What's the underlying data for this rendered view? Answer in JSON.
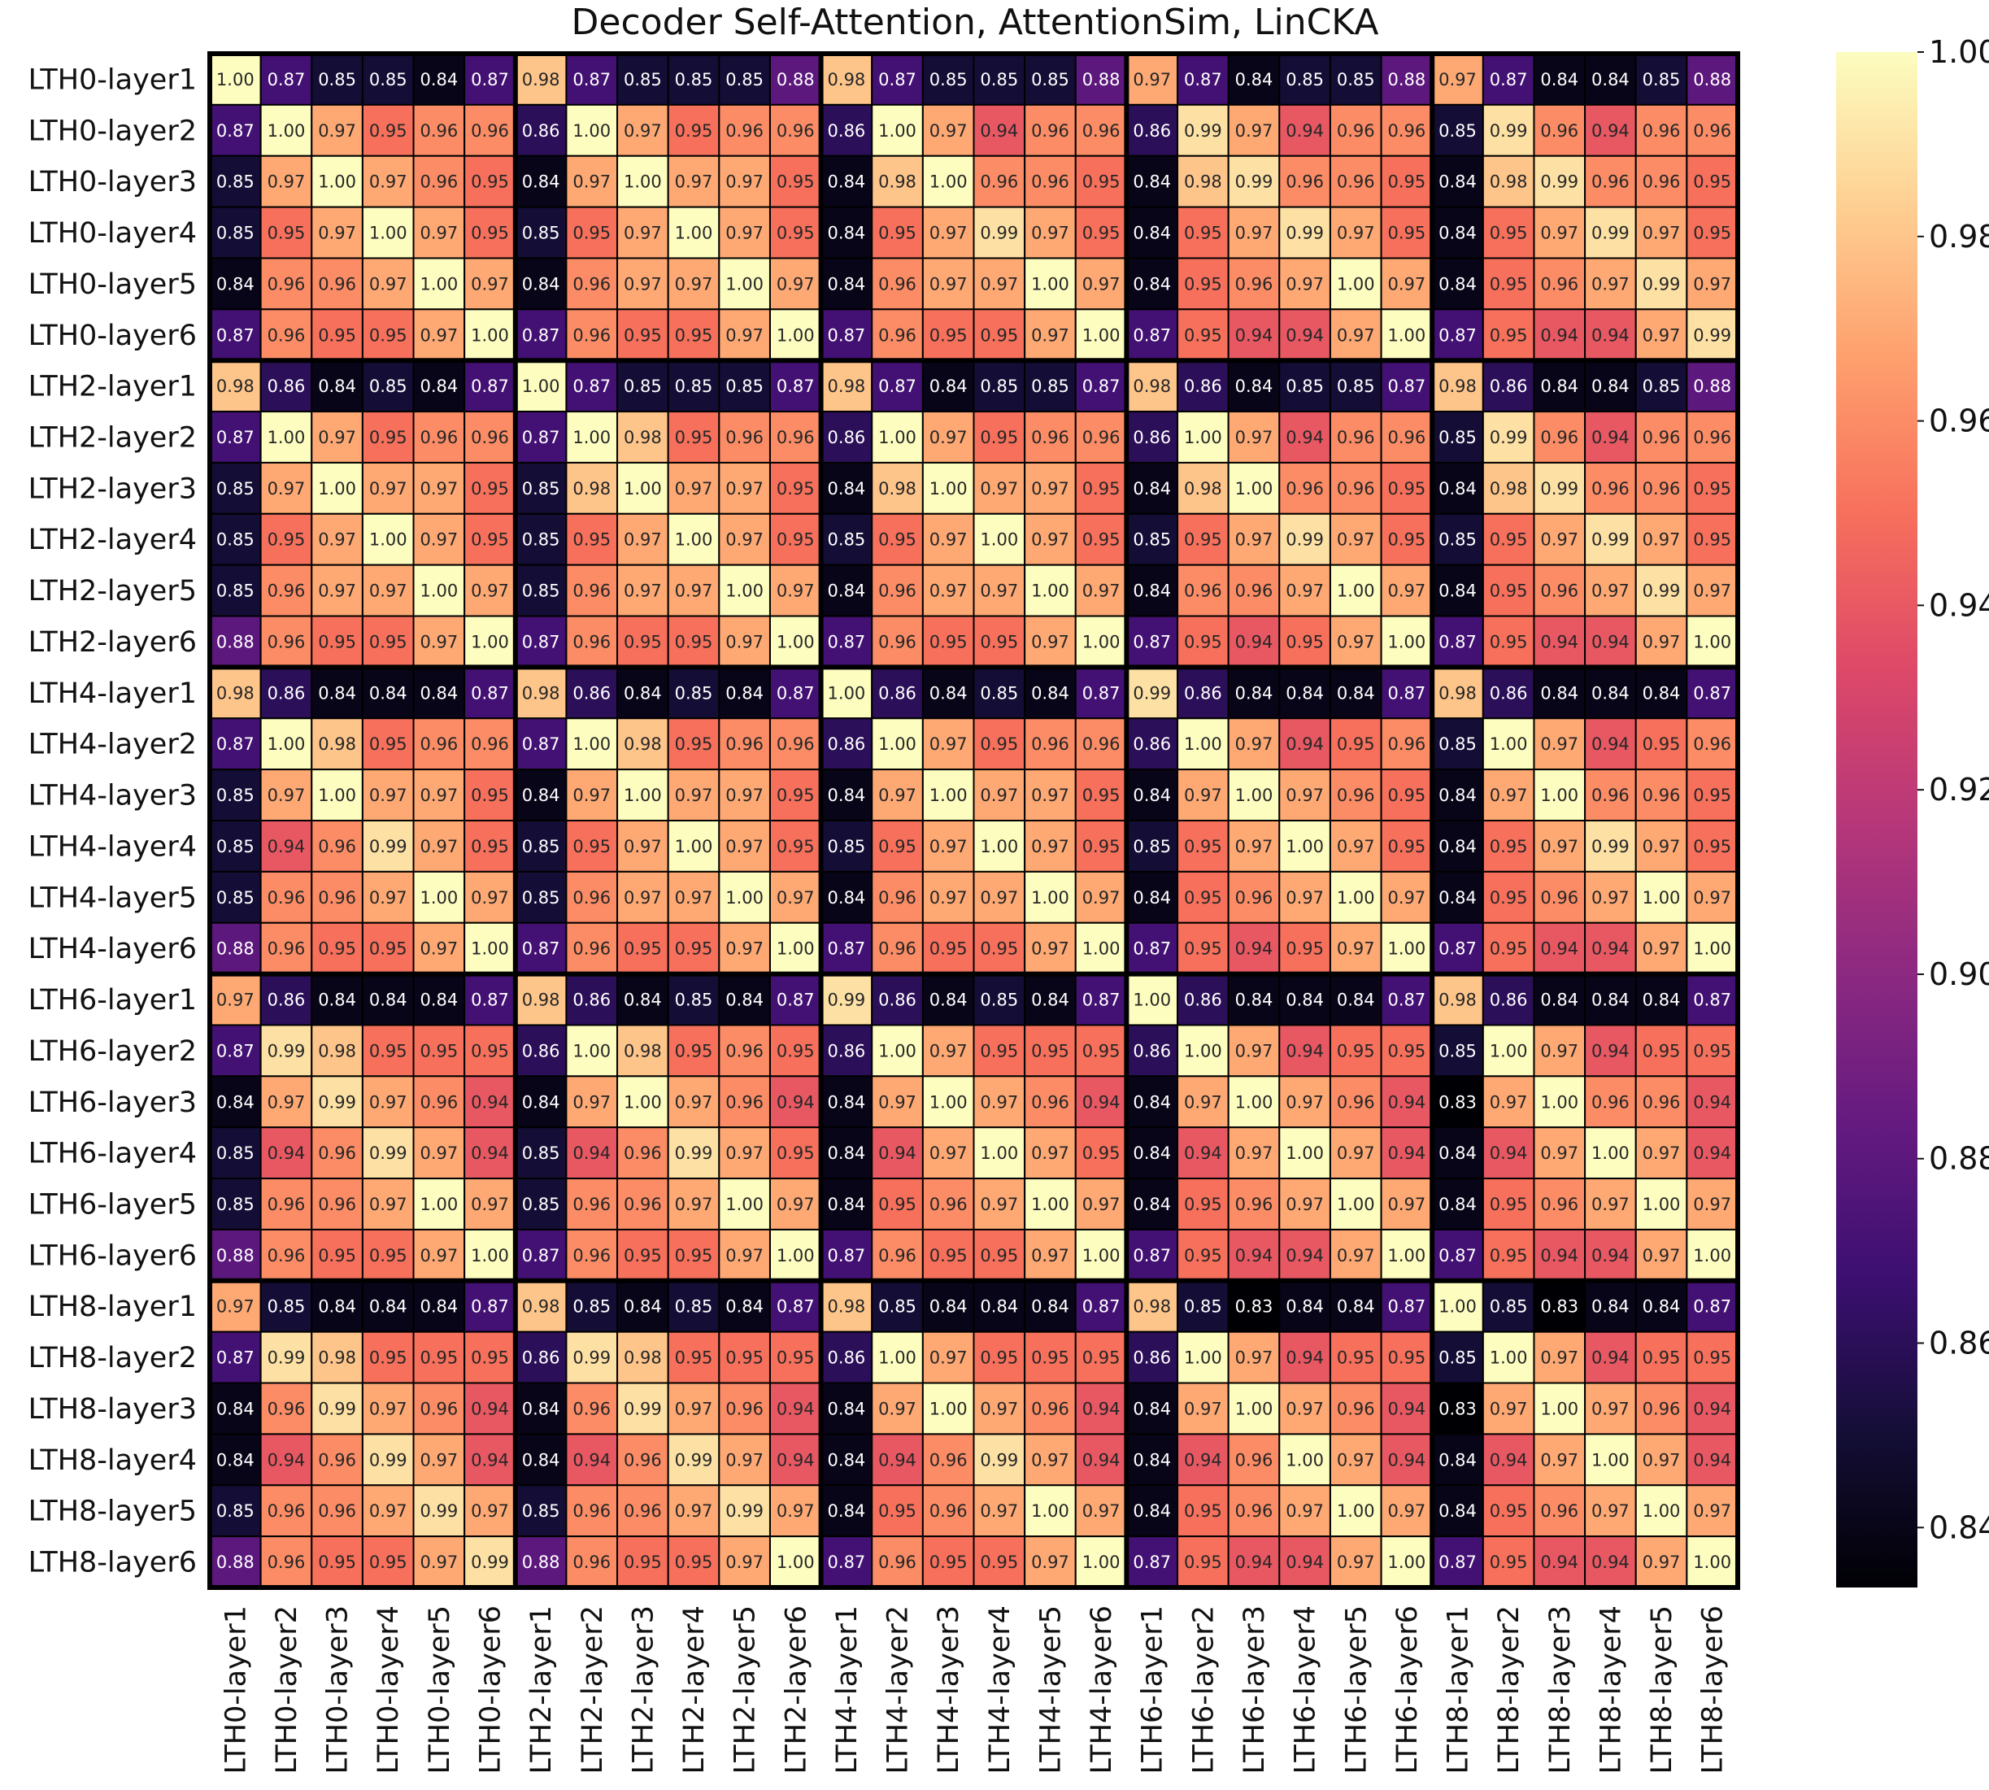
{
  "chart_data": {
    "type": "heatmap",
    "title": "Decoder Self-Attention, AttentionSim, LinCKA",
    "colormap": "magma",
    "vmin": 0.8335,
    "vmax": 1.0,
    "colorbar_ticks": [
      "0.84",
      "0.86",
      "0.88",
      "0.90",
      "0.92",
      "0.94",
      "0.96",
      "0.98",
      "1.00"
    ],
    "labels": [
      "LTH0-layer1",
      "LTH0-layer2",
      "LTH0-layer3",
      "LTH0-layer4",
      "LTH0-layer5",
      "LTH0-layer6",
      "LTH2-layer1",
      "LTH2-layer2",
      "LTH2-layer3",
      "LTH2-layer4",
      "LTH2-layer5",
      "LTH2-layer6",
      "LTH4-layer1",
      "LTH4-layer2",
      "LTH4-layer3",
      "LTH4-layer4",
      "LTH4-layer5",
      "LTH4-layer6",
      "LTH6-layer1",
      "LTH6-layer2",
      "LTH6-layer3",
      "LTH6-layer4",
      "LTH6-layer5",
      "LTH6-layer6",
      "LTH8-layer1",
      "LTH8-layer2",
      "LTH8-layer3",
      "LTH8-layer4",
      "LTH8-layer5",
      "LTH8-layer6"
    ],
    "values": [
      [
        "1.00",
        "0.87",
        "0.85",
        "0.85",
        "0.84",
        "0.87",
        "0.98",
        "0.87",
        "0.85",
        "0.85",
        "0.85",
        "0.88",
        "0.98",
        "0.87",
        "0.85",
        "0.85",
        "0.85",
        "0.88",
        "0.97",
        "0.87",
        "0.84",
        "0.85",
        "0.85",
        "0.88",
        "0.97",
        "0.87",
        "0.84",
        "0.84",
        "0.85",
        "0.88"
      ],
      [
        "0.87",
        "1.00",
        "0.97",
        "0.95",
        "0.96",
        "0.96",
        "0.86",
        "1.00",
        "0.97",
        "0.95",
        "0.96",
        "0.96",
        "0.86",
        "1.00",
        "0.97",
        "0.94",
        "0.96",
        "0.96",
        "0.86",
        "0.99",
        "0.97",
        "0.94",
        "0.96",
        "0.96",
        "0.85",
        "0.99",
        "0.96",
        "0.94",
        "0.96",
        "0.96"
      ],
      [
        "0.85",
        "0.97",
        "1.00",
        "0.97",
        "0.96",
        "0.95",
        "0.84",
        "0.97",
        "1.00",
        "0.97",
        "0.97",
        "0.95",
        "0.84",
        "0.98",
        "1.00",
        "0.96",
        "0.96",
        "0.95",
        "0.84",
        "0.98",
        "0.99",
        "0.96",
        "0.96",
        "0.95",
        "0.84",
        "0.98",
        "0.99",
        "0.96",
        "0.96",
        "0.95"
      ],
      [
        "0.85",
        "0.95",
        "0.97",
        "1.00",
        "0.97",
        "0.95",
        "0.85",
        "0.95",
        "0.97",
        "1.00",
        "0.97",
        "0.95",
        "0.84",
        "0.95",
        "0.97",
        "0.99",
        "0.97",
        "0.95",
        "0.84",
        "0.95",
        "0.97",
        "0.99",
        "0.97",
        "0.95",
        "0.84",
        "0.95",
        "0.97",
        "0.99",
        "0.97",
        "0.95"
      ],
      [
        "0.84",
        "0.96",
        "0.96",
        "0.97",
        "1.00",
        "0.97",
        "0.84",
        "0.96",
        "0.97",
        "0.97",
        "1.00",
        "0.97",
        "0.84",
        "0.96",
        "0.97",
        "0.97",
        "1.00",
        "0.97",
        "0.84",
        "0.95",
        "0.96",
        "0.97",
        "1.00",
        "0.97",
        "0.84",
        "0.95",
        "0.96",
        "0.97",
        "0.99",
        "0.97"
      ],
      [
        "0.87",
        "0.96",
        "0.95",
        "0.95",
        "0.97",
        "1.00",
        "0.87",
        "0.96",
        "0.95",
        "0.95",
        "0.97",
        "1.00",
        "0.87",
        "0.96",
        "0.95",
        "0.95",
        "0.97",
        "1.00",
        "0.87",
        "0.95",
        "0.94",
        "0.94",
        "0.97",
        "1.00",
        "0.87",
        "0.95",
        "0.94",
        "0.94",
        "0.97",
        "0.99"
      ],
      [
        "0.98",
        "0.86",
        "0.84",
        "0.85",
        "0.84",
        "0.87",
        "1.00",
        "0.87",
        "0.85",
        "0.85",
        "0.85",
        "0.87",
        "0.98",
        "0.87",
        "0.84",
        "0.85",
        "0.85",
        "0.87",
        "0.98",
        "0.86",
        "0.84",
        "0.85",
        "0.85",
        "0.87",
        "0.98",
        "0.86",
        "0.84",
        "0.84",
        "0.85",
        "0.88"
      ],
      [
        "0.87",
        "1.00",
        "0.97",
        "0.95",
        "0.96",
        "0.96",
        "0.87",
        "1.00",
        "0.98",
        "0.95",
        "0.96",
        "0.96",
        "0.86",
        "1.00",
        "0.97",
        "0.95",
        "0.96",
        "0.96",
        "0.86",
        "1.00",
        "0.97",
        "0.94",
        "0.96",
        "0.96",
        "0.85",
        "0.99",
        "0.96",
        "0.94",
        "0.96",
        "0.96"
      ],
      [
        "0.85",
        "0.97",
        "1.00",
        "0.97",
        "0.97",
        "0.95",
        "0.85",
        "0.98",
        "1.00",
        "0.97",
        "0.97",
        "0.95",
        "0.84",
        "0.98",
        "1.00",
        "0.97",
        "0.97",
        "0.95",
        "0.84",
        "0.98",
        "1.00",
        "0.96",
        "0.96",
        "0.95",
        "0.84",
        "0.98",
        "0.99",
        "0.96",
        "0.96",
        "0.95"
      ],
      [
        "0.85",
        "0.95",
        "0.97",
        "1.00",
        "0.97",
        "0.95",
        "0.85",
        "0.95",
        "0.97",
        "1.00",
        "0.97",
        "0.95",
        "0.85",
        "0.95",
        "0.97",
        "1.00",
        "0.97",
        "0.95",
        "0.85",
        "0.95",
        "0.97",
        "0.99",
        "0.97",
        "0.95",
        "0.85",
        "0.95",
        "0.97",
        "0.99",
        "0.97",
        "0.95"
      ],
      [
        "0.85",
        "0.96",
        "0.97",
        "0.97",
        "1.00",
        "0.97",
        "0.85",
        "0.96",
        "0.97",
        "0.97",
        "1.00",
        "0.97",
        "0.84",
        "0.96",
        "0.97",
        "0.97",
        "1.00",
        "0.97",
        "0.84",
        "0.96",
        "0.96",
        "0.97",
        "1.00",
        "0.97",
        "0.84",
        "0.95",
        "0.96",
        "0.97",
        "0.99",
        "0.97"
      ],
      [
        "0.88",
        "0.96",
        "0.95",
        "0.95",
        "0.97",
        "1.00",
        "0.87",
        "0.96",
        "0.95",
        "0.95",
        "0.97",
        "1.00",
        "0.87",
        "0.96",
        "0.95",
        "0.95",
        "0.97",
        "1.00",
        "0.87",
        "0.95",
        "0.94",
        "0.95",
        "0.97",
        "1.00",
        "0.87",
        "0.95",
        "0.94",
        "0.94",
        "0.97",
        "1.00"
      ],
      [
        "0.98",
        "0.86",
        "0.84",
        "0.84",
        "0.84",
        "0.87",
        "0.98",
        "0.86",
        "0.84",
        "0.85",
        "0.84",
        "0.87",
        "1.00",
        "0.86",
        "0.84",
        "0.85",
        "0.84",
        "0.87",
        "0.99",
        "0.86",
        "0.84",
        "0.84",
        "0.84",
        "0.87",
        "0.98",
        "0.86",
        "0.84",
        "0.84",
        "0.84",
        "0.87"
      ],
      [
        "0.87",
        "1.00",
        "0.98",
        "0.95",
        "0.96",
        "0.96",
        "0.87",
        "1.00",
        "0.98",
        "0.95",
        "0.96",
        "0.96",
        "0.86",
        "1.00",
        "0.97",
        "0.95",
        "0.96",
        "0.96",
        "0.86",
        "1.00",
        "0.97",
        "0.94",
        "0.95",
        "0.96",
        "0.85",
        "1.00",
        "0.97",
        "0.94",
        "0.95",
        "0.96"
      ],
      [
        "0.85",
        "0.97",
        "1.00",
        "0.97",
        "0.97",
        "0.95",
        "0.84",
        "0.97",
        "1.00",
        "0.97",
        "0.97",
        "0.95",
        "0.84",
        "0.97",
        "1.00",
        "0.97",
        "0.97",
        "0.95",
        "0.84",
        "0.97",
        "1.00",
        "0.97",
        "0.96",
        "0.95",
        "0.84",
        "0.97",
        "1.00",
        "0.96",
        "0.96",
        "0.95"
      ],
      [
        "0.85",
        "0.94",
        "0.96",
        "0.99",
        "0.97",
        "0.95",
        "0.85",
        "0.95",
        "0.97",
        "1.00",
        "0.97",
        "0.95",
        "0.85",
        "0.95",
        "0.97",
        "1.00",
        "0.97",
        "0.95",
        "0.85",
        "0.95",
        "0.97",
        "1.00",
        "0.97",
        "0.95",
        "0.84",
        "0.95",
        "0.97",
        "0.99",
        "0.97",
        "0.95"
      ],
      [
        "0.85",
        "0.96",
        "0.96",
        "0.97",
        "1.00",
        "0.97",
        "0.85",
        "0.96",
        "0.97",
        "0.97",
        "1.00",
        "0.97",
        "0.84",
        "0.96",
        "0.97",
        "0.97",
        "1.00",
        "0.97",
        "0.84",
        "0.95",
        "0.96",
        "0.97",
        "1.00",
        "0.97",
        "0.84",
        "0.95",
        "0.96",
        "0.97",
        "1.00",
        "0.97"
      ],
      [
        "0.88",
        "0.96",
        "0.95",
        "0.95",
        "0.97",
        "1.00",
        "0.87",
        "0.96",
        "0.95",
        "0.95",
        "0.97",
        "1.00",
        "0.87",
        "0.96",
        "0.95",
        "0.95",
        "0.97",
        "1.00",
        "0.87",
        "0.95",
        "0.94",
        "0.95",
        "0.97",
        "1.00",
        "0.87",
        "0.95",
        "0.94",
        "0.94",
        "0.97",
        "1.00"
      ],
      [
        "0.97",
        "0.86",
        "0.84",
        "0.84",
        "0.84",
        "0.87",
        "0.98",
        "0.86",
        "0.84",
        "0.85",
        "0.84",
        "0.87",
        "0.99",
        "0.86",
        "0.84",
        "0.85",
        "0.84",
        "0.87",
        "1.00",
        "0.86",
        "0.84",
        "0.84",
        "0.84",
        "0.87",
        "0.98",
        "0.86",
        "0.84",
        "0.84",
        "0.84",
        "0.87"
      ],
      [
        "0.87",
        "0.99",
        "0.98",
        "0.95",
        "0.95",
        "0.95",
        "0.86",
        "1.00",
        "0.98",
        "0.95",
        "0.96",
        "0.95",
        "0.86",
        "1.00",
        "0.97",
        "0.95",
        "0.95",
        "0.95",
        "0.86",
        "1.00",
        "0.97",
        "0.94",
        "0.95",
        "0.95",
        "0.85",
        "1.00",
        "0.97",
        "0.94",
        "0.95",
        "0.95"
      ],
      [
        "0.84",
        "0.97",
        "0.99",
        "0.97",
        "0.96",
        "0.94",
        "0.84",
        "0.97",
        "1.00",
        "0.97",
        "0.96",
        "0.94",
        "0.84",
        "0.97",
        "1.00",
        "0.97",
        "0.96",
        "0.94",
        "0.84",
        "0.97",
        "1.00",
        "0.97",
        "0.96",
        "0.94",
        "0.83",
        "0.97",
        "1.00",
        "0.96",
        "0.96",
        "0.94"
      ],
      [
        "0.85",
        "0.94",
        "0.96",
        "0.99",
        "0.97",
        "0.94",
        "0.85",
        "0.94",
        "0.96",
        "0.99",
        "0.97",
        "0.95",
        "0.84",
        "0.94",
        "0.97",
        "1.00",
        "0.97",
        "0.95",
        "0.84",
        "0.94",
        "0.97",
        "1.00",
        "0.97",
        "0.94",
        "0.84",
        "0.94",
        "0.97",
        "1.00",
        "0.97",
        "0.94"
      ],
      [
        "0.85",
        "0.96",
        "0.96",
        "0.97",
        "1.00",
        "0.97",
        "0.85",
        "0.96",
        "0.96",
        "0.97",
        "1.00",
        "0.97",
        "0.84",
        "0.95",
        "0.96",
        "0.97",
        "1.00",
        "0.97",
        "0.84",
        "0.95",
        "0.96",
        "0.97",
        "1.00",
        "0.97",
        "0.84",
        "0.95",
        "0.96",
        "0.97",
        "1.00",
        "0.97"
      ],
      [
        "0.88",
        "0.96",
        "0.95",
        "0.95",
        "0.97",
        "1.00",
        "0.87",
        "0.96",
        "0.95",
        "0.95",
        "0.97",
        "1.00",
        "0.87",
        "0.96",
        "0.95",
        "0.95",
        "0.97",
        "1.00",
        "0.87",
        "0.95",
        "0.94",
        "0.94",
        "0.97",
        "1.00",
        "0.87",
        "0.95",
        "0.94",
        "0.94",
        "0.97",
        "1.00"
      ],
      [
        "0.97",
        "0.85",
        "0.84",
        "0.84",
        "0.84",
        "0.87",
        "0.98",
        "0.85",
        "0.84",
        "0.85",
        "0.84",
        "0.87",
        "0.98",
        "0.85",
        "0.84",
        "0.84",
        "0.84",
        "0.87",
        "0.98",
        "0.85",
        "0.83",
        "0.84",
        "0.84",
        "0.87",
        "1.00",
        "0.85",
        "0.83",
        "0.84",
        "0.84",
        "0.87"
      ],
      [
        "0.87",
        "0.99",
        "0.98",
        "0.95",
        "0.95",
        "0.95",
        "0.86",
        "0.99",
        "0.98",
        "0.95",
        "0.95",
        "0.95",
        "0.86",
        "1.00",
        "0.97",
        "0.95",
        "0.95",
        "0.95",
        "0.86",
        "1.00",
        "0.97",
        "0.94",
        "0.95",
        "0.95",
        "0.85",
        "1.00",
        "0.97",
        "0.94",
        "0.95",
        "0.95"
      ],
      [
        "0.84",
        "0.96",
        "0.99",
        "0.97",
        "0.96",
        "0.94",
        "0.84",
        "0.96",
        "0.99",
        "0.97",
        "0.96",
        "0.94",
        "0.84",
        "0.97",
        "1.00",
        "0.97",
        "0.96",
        "0.94",
        "0.84",
        "0.97",
        "1.00",
        "0.97",
        "0.96",
        "0.94",
        "0.83",
        "0.97",
        "1.00",
        "0.97",
        "0.96",
        "0.94"
      ],
      [
        "0.84",
        "0.94",
        "0.96",
        "0.99",
        "0.97",
        "0.94",
        "0.84",
        "0.94",
        "0.96",
        "0.99",
        "0.97",
        "0.94",
        "0.84",
        "0.94",
        "0.96",
        "0.99",
        "0.97",
        "0.94",
        "0.84",
        "0.94",
        "0.96",
        "1.00",
        "0.97",
        "0.94",
        "0.84",
        "0.94",
        "0.97",
        "1.00",
        "0.97",
        "0.94"
      ],
      [
        "0.85",
        "0.96",
        "0.96",
        "0.97",
        "0.99",
        "0.97",
        "0.85",
        "0.96",
        "0.96",
        "0.97",
        "0.99",
        "0.97",
        "0.84",
        "0.95",
        "0.96",
        "0.97",
        "1.00",
        "0.97",
        "0.84",
        "0.95",
        "0.96",
        "0.97",
        "1.00",
        "0.97",
        "0.84",
        "0.95",
        "0.96",
        "0.97",
        "1.00",
        "0.97"
      ],
      [
        "0.88",
        "0.96",
        "0.95",
        "0.95",
        "0.97",
        "0.99",
        "0.88",
        "0.96",
        "0.95",
        "0.95",
        "0.97",
        "1.00",
        "0.87",
        "0.96",
        "0.95",
        "0.95",
        "0.97",
        "1.00",
        "0.87",
        "0.95",
        "0.94",
        "0.94",
        "0.97",
        "1.00",
        "0.87",
        "0.95",
        "0.94",
        "0.94",
        "0.97",
        "1.00"
      ]
    ]
  }
}
